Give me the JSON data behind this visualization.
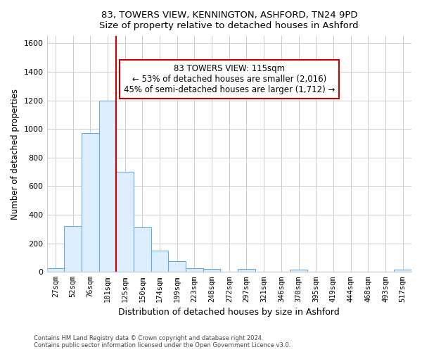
{
  "title": "83, TOWERS VIEW, KENNINGTON, ASHFORD, TN24 9PD",
  "subtitle": "Size of property relative to detached houses in Ashford",
  "xlabel": "Distribution of detached houses by size in Ashford",
  "ylabel": "Number of detached properties",
  "bar_color": "#ddeeff",
  "bar_edge_color": "#6aaad4",
  "bins": [
    "27sqm",
    "52sqm",
    "76sqm",
    "101sqm",
    "125sqm",
    "150sqm",
    "174sqm",
    "199sqm",
    "223sqm",
    "248sqm",
    "272sqm",
    "297sqm",
    "321sqm",
    "346sqm",
    "370sqm",
    "395sqm",
    "419sqm",
    "444sqm",
    "468sqm",
    "493sqm",
    "517sqm"
  ],
  "values": [
    25,
    320,
    970,
    1200,
    700,
    310,
    150,
    75,
    25,
    20,
    0,
    20,
    0,
    0,
    15,
    0,
    0,
    0,
    0,
    0,
    15
  ],
  "ylim": [
    0,
    1650
  ],
  "yticks": [
    0,
    200,
    400,
    600,
    800,
    1000,
    1200,
    1400,
    1600
  ],
  "vline_x": 3.5,
  "vline_color": "#cc0000",
  "annotation_text": "83 TOWERS VIEW: 115sqm\n← 53% of detached houses are smaller (2,016)\n45% of semi-detached houses are larger (1,712) →",
  "annotation_box_color": "#ffffff",
  "annotation_box_edge_color": "#cc0000",
  "footer_line1": "Contains HM Land Registry data © Crown copyright and database right 2024.",
  "footer_line2": "Contains public sector information licensed under the Open Government Licence v3.0.",
  "background_color": "#ffffff",
  "plot_background_color": "#ffffff",
  "grid_color": "#cccccc"
}
